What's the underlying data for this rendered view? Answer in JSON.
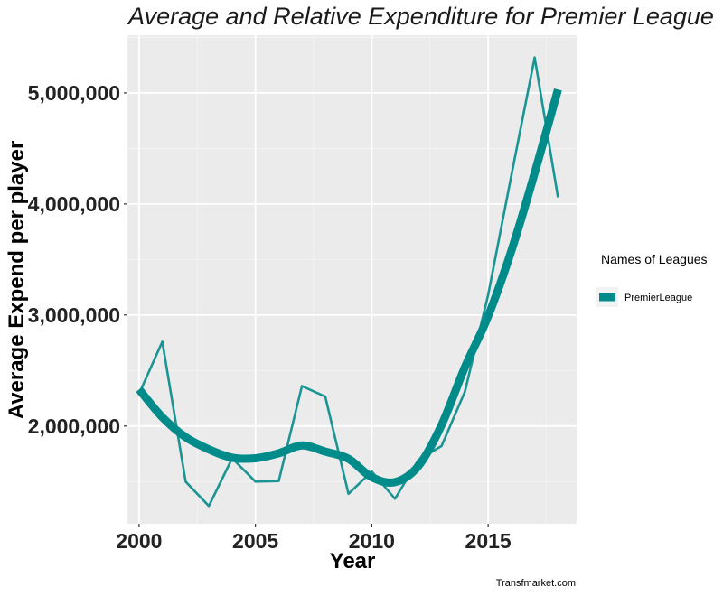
{
  "chart_data": {
    "type": "line",
    "title": "Average and Relative  Expenditure for Premier League",
    "xlabel": "Year",
    "ylabel": "Average Expend  per player",
    "caption": "Transfmarket.com",
    "xlim": [
      1999.5,
      2018.8
    ],
    "ylim": [
      1120000,
      5520000
    ],
    "xticks": [
      2000,
      2005,
      2010,
      2015
    ],
    "xtick_labels": [
      "2000",
      "2005",
      "2010",
      "2015"
    ],
    "yticks": [
      2000000,
      3000000,
      4000000,
      5000000
    ],
    "ytick_labels": [
      "2,000,000",
      "3,000,000",
      "4,000,000",
      "5,000,000"
    ],
    "grid": true,
    "legend": {
      "title": "Names of Leagues",
      "position": "right",
      "entries": [
        "PremierLeague"
      ]
    },
    "series": [
      {
        "name": "PremierLeague",
        "kind": "raw",
        "color": "#1b9494",
        "x": [
          2000,
          2001,
          2002,
          2003,
          2004,
          2005,
          2006,
          2007,
          2008,
          2009,
          2010,
          2011,
          2012,
          2013,
          2014,
          2015,
          2016,
          2017,
          2018
        ],
        "y": [
          2290000,
          2760000,
          1500000,
          1280000,
          1710000,
          1500000,
          1505000,
          2360000,
          2265000,
          1390000,
          1590000,
          1345000,
          1695000,
          1820000,
          2310000,
          3180000,
          4260000,
          5320000,
          4060000
        ]
      },
      {
        "name": "PremierLeague",
        "kind": "smoothed",
        "color": "#008b8b",
        "x": [
          2000,
          2001,
          2002,
          2003,
          2004,
          2005,
          2006,
          2007,
          2008,
          2009,
          2010,
          2011,
          2012,
          2013,
          2014,
          2015,
          2016,
          2017,
          2018
        ],
        "y": [
          2330000,
          2080000,
          1900000,
          1790000,
          1715000,
          1710000,
          1755000,
          1825000,
          1770000,
          1705000,
          1540000,
          1495000,
          1640000,
          2010000,
          2530000,
          2990000,
          3580000,
          4280000,
          5030000
        ]
      }
    ]
  }
}
